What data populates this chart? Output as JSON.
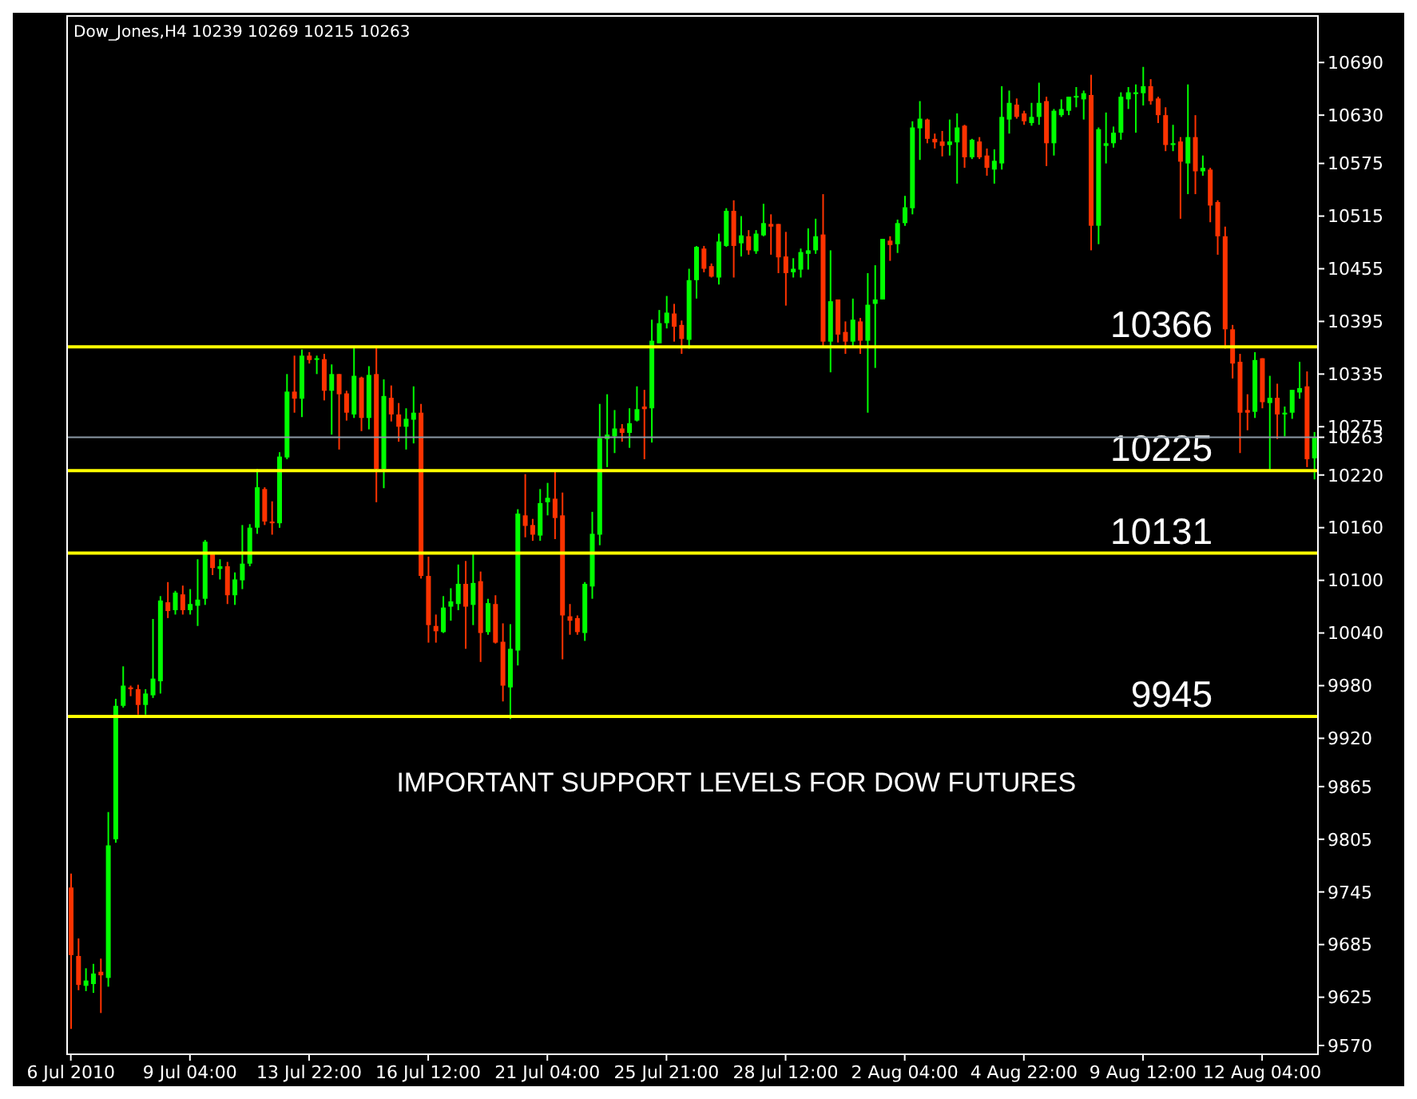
{
  "chart_data": {
    "type": "candlestick",
    "title": "Dow_Jones,H4  10239 10269 10215 10263",
    "categories": [
      "6 Jul 2010",
      null,
      null,
      null,
      null,
      null,
      null,
      null,
      null,
      null,
      null,
      null,
      null,
      null,
      null,
      null,
      "9 Jul 04:00",
      null,
      null,
      null,
      null,
      null,
      null,
      null,
      null,
      null,
      null,
      null,
      null,
      null,
      null,
      null,
      "13 Jul 22:00",
      null,
      null,
      null,
      null,
      null,
      null,
      null,
      null,
      null,
      null,
      null,
      null,
      null,
      null,
      null,
      "16 Jul 12:00",
      null,
      null,
      null,
      null,
      null,
      null,
      null,
      null,
      null,
      null,
      null,
      null,
      null,
      null,
      null,
      "21 Jul 04:00",
      null,
      null,
      null,
      null,
      null,
      null,
      null,
      null,
      null,
      null,
      null,
      null,
      null,
      null,
      null,
      "25 Jul 21:00",
      null,
      null,
      null,
      null,
      null,
      null,
      null,
      null,
      null,
      null,
      null,
      null,
      null,
      null,
      null,
      "28 Jul 12:00",
      null,
      null,
      null,
      null,
      null,
      null,
      null,
      null,
      null,
      null,
      null,
      null,
      null,
      null,
      null,
      "2 Aug 04:00",
      null,
      null,
      null,
      null,
      null,
      null,
      null,
      null,
      null,
      null,
      null,
      null,
      null,
      null,
      null,
      "4 Aug 22:00",
      null,
      null,
      null,
      null,
      null,
      null,
      null,
      null,
      null,
      null,
      null,
      null,
      null,
      null,
      null,
      "9 Aug 12:00",
      null,
      null,
      null,
      null,
      null,
      null,
      null,
      null,
      null,
      null,
      null,
      null,
      null,
      null,
      null,
      "12 Aug 04:00",
      null,
      null,
      null,
      null,
      null,
      null,
      null
    ],
    "ohlc": [
      [
        9750,
        9766,
        9589,
        9673
      ],
      [
        9672,
        9692,
        9633,
        9639
      ],
      [
        9638,
        9658,
        9632,
        9644
      ],
      [
        9640,
        9663,
        9630,
        9652
      ],
      [
        9654,
        9669,
        9607,
        9650
      ],
      [
        9647,
        9836,
        9637,
        9798
      ],
      [
        9805,
        9965,
        9801,
        9957
      ],
      [
        9957,
        10002,
        9955,
        9980
      ],
      [
        9978,
        9980,
        9968,
        9976
      ],
      [
        9976,
        9981,
        9947,
        9958
      ],
      [
        9958,
        9976,
        9947,
        9971
      ],
      [
        9969,
        10056,
        9966,
        9988
      ],
      [
        9985,
        10082,
        9971,
        10077
      ],
      [
        10075,
        10098,
        10057,
        10065
      ],
      [
        10066,
        10088,
        10061,
        10086
      ],
      [
        10084,
        10094,
        10061,
        10066
      ],
      [
        10066,
        10090,
        10061,
        10073
      ],
      [
        10071,
        10124,
        10048,
        10078
      ],
      [
        10079,
        10146,
        10072,
        10144
      ],
      [
        10130,
        10130,
        10106,
        10114
      ],
      [
        10113,
        10124,
        10101,
        10116
      ],
      [
        10116,
        10121,
        10073,
        10083
      ],
      [
        10083,
        10109,
        10072,
        10101
      ],
      [
        10100,
        10163,
        10090,
        10119
      ],
      [
        10119,
        10164,
        10116,
        10160
      ],
      [
        10160,
        10227,
        10153,
        10206
      ],
      [
        10204,
        10206,
        10163,
        10167
      ],
      [
        10167,
        10190,
        10152,
        10165
      ],
      [
        10165,
        10246,
        10160,
        10241
      ],
      [
        10240,
        10335,
        10238,
        10315
      ],
      [
        10315,
        10356,
        10291,
        10307
      ],
      [
        10307,
        10363,
        10286,
        10356
      ],
      [
        10356,
        10360,
        10347,
        10351
      ],
      [
        10352,
        10356,
        10335,
        10353
      ],
      [
        10352,
        10358,
        10305,
        10316
      ],
      [
        10316,
        10346,
        10266,
        10335
      ],
      [
        10335,
        10335,
        10249,
        10312
      ],
      [
        10313,
        10316,
        10282,
        10291
      ],
      [
        10289,
        10367,
        10285,
        10333
      ],
      [
        10331,
        10332,
        10270,
        10285
      ],
      [
        10285,
        10344,
        10272,
        10334
      ],
      [
        10335,
        10365,
        10189,
        10227
      ],
      [
        10227,
        10329,
        10205,
        10310
      ],
      [
        10308,
        10322,
        10281,
        10289
      ],
      [
        10289,
        10302,
        10258,
        10275
      ],
      [
        10275,
        10296,
        10249,
        10284
      ],
      [
        10283,
        10321,
        10256,
        10291
      ],
      [
        10291,
        10301,
        10102,
        10105
      ],
      [
        10105,
        10127,
        10029,
        10049
      ],
      [
        10048,
        10061,
        10029,
        10042
      ],
      [
        10041,
        10082,
        10040,
        10069
      ],
      [
        10070,
        10091,
        10054,
        10076
      ],
      [
        10073,
        10118,
        10066,
        10096
      ],
      [
        10096,
        10122,
        10022,
        10070
      ],
      [
        10072,
        10131,
        10049,
        10097
      ],
      [
        10099,
        10110,
        10007,
        10040
      ],
      [
        10041,
        10079,
        10038,
        10074
      ],
      [
        10073,
        10083,
        10028,
        10029
      ],
      [
        10030,
        10051,
        9962,
        9980
      ],
      [
        9978,
        10050,
        9942,
        10022
      ],
      [
        10020,
        10181,
        10003,
        10176
      ],
      [
        10174,
        10221,
        10149,
        10162
      ],
      [
        10163,
        10170,
        10145,
        10152
      ],
      [
        10151,
        10204,
        10145,
        10188
      ],
      [
        10189,
        10211,
        10174,
        10194
      ],
      [
        10193,
        10225,
        10147,
        10171
      ],
      [
        10174,
        10200,
        10010,
        10060
      ],
      [
        10059,
        10073,
        10038,
        10054
      ],
      [
        10057,
        10060,
        10038,
        10041
      ],
      [
        10040,
        10098,
        10031,
        10096
      ],
      [
        10093,
        10178,
        10079,
        10153
      ],
      [
        10152,
        10301,
        10140,
        10262
      ],
      [
        10261,
        10312,
        10229,
        10266
      ],
      [
        10264,
        10294,
        10245,
        10273
      ],
      [
        10273,
        10278,
        10258,
        10268
      ],
      [
        10268,
        10296,
        10251,
        10279
      ],
      [
        10282,
        10321,
        10281,
        10295
      ],
      [
        10298,
        10317,
        10238,
        10295
      ],
      [
        10296,
        10397,
        10257,
        10373
      ],
      [
        10370,
        10408,
        10370,
        10393
      ],
      [
        10393,
        10424,
        10387,
        10405
      ],
      [
        10404,
        10415,
        10372,
        10389
      ],
      [
        10391,
        10396,
        10358,
        10375
      ],
      [
        10374,
        10455,
        10364,
        10442
      ],
      [
        10442,
        10481,
        10421,
        10480
      ],
      [
        10478,
        10481,
        10451,
        10455
      ],
      [
        10458,
        10461,
        10445,
        10446
      ],
      [
        10445,
        10495,
        10437,
        10486
      ],
      [
        10481,
        10524,
        10480,
        10521
      ],
      [
        10521,
        10533,
        10445,
        10481
      ],
      [
        10484,
        10515,
        10469,
        10493
      ],
      [
        10492,
        10499,
        10471,
        10476
      ],
      [
        10475,
        10499,
        10472,
        10495
      ],
      [
        10493,
        10529,
        10492,
        10507
      ],
      [
        10506,
        10517,
        10471,
        10503
      ],
      [
        10506,
        10506,
        10450,
        10468
      ],
      [
        10469,
        10497,
        10413,
        10450
      ],
      [
        10451,
        10467,
        10445,
        10455
      ],
      [
        10454,
        10478,
        10445,
        10474
      ],
      [
        10472,
        10501,
        10454,
        10476
      ],
      [
        10476,
        10512,
        10472,
        10492
      ],
      [
        10494,
        10540,
        10365,
        10372
      ],
      [
        10372,
        10476,
        10337,
        10418
      ],
      [
        10420,
        10420,
        10371,
        10380
      ],
      [
        10383,
        10395,
        10358,
        10372
      ],
      [
        10372,
        10421,
        10367,
        10397
      ],
      [
        10395,
        10399,
        10358,
        10373
      ],
      [
        10373,
        10450,
        10291,
        10414
      ],
      [
        10415,
        10459,
        10342,
        10420
      ],
      [
        10420,
        10489,
        10420,
        10489
      ],
      [
        10487,
        10492,
        10464,
        10482
      ],
      [
        10483,
        10511,
        10473,
        10507
      ],
      [
        10507,
        10538,
        10504,
        10525
      ],
      [
        10524,
        10623,
        10517,
        10616
      ],
      [
        10615,
        10646,
        10579,
        10626
      ],
      [
        10625,
        10626,
        10598,
        10603
      ],
      [
        10603,
        10609,
        10592,
        10599
      ],
      [
        10600,
        10612,
        10583,
        10595
      ],
      [
        10596,
        10625,
        10584,
        10600
      ],
      [
        10599,
        10632,
        10552,
        10616
      ],
      [
        10618,
        10619,
        10570,
        10582
      ],
      [
        10582,
        10603,
        10580,
        10602
      ],
      [
        10600,
        10605,
        10580,
        10582
      ],
      [
        10584,
        10592,
        10561,
        10570
      ],
      [
        10568,
        10591,
        10552,
        10578
      ],
      [
        10575,
        10663,
        10568,
        10628
      ],
      [
        10625,
        10658,
        10609,
        10644
      ],
      [
        10642,
        10649,
        10626,
        10628
      ],
      [
        10632,
        10635,
        10619,
        10623
      ],
      [
        10621,
        10644,
        10618,
        10628
      ],
      [
        10628,
        10667,
        10619,
        10644
      ],
      [
        10646,
        10651,
        10572,
        10598
      ],
      [
        10598,
        10637,
        10584,
        10635
      ],
      [
        10630,
        10648,
        10628,
        10637
      ],
      [
        10635,
        10651,
        10630,
        10651
      ],
      [
        10650,
        10662,
        10639,
        10652
      ],
      [
        10648,
        10658,
        10625,
        10655
      ],
      [
        10653,
        10676,
        10476,
        10504
      ],
      [
        10504,
        10616,
        10483,
        10614
      ],
      [
        10595,
        10633,
        10575,
        10598
      ],
      [
        10598,
        10617,
        10593,
        10610
      ],
      [
        10610,
        10656,
        10602,
        10651
      ],
      [
        10648,
        10662,
        10637,
        10656
      ],
      [
        10654,
        10665,
        10610,
        10656
      ],
      [
        10655,
        10685,
        10641,
        10663
      ],
      [
        10663,
        10671,
        10642,
        10646
      ],
      [
        10649,
        10651,
        10621,
        10630
      ],
      [
        10630,
        10639,
        10589,
        10596
      ],
      [
        10596,
        10619,
        10589,
        10598
      ],
      [
        10600,
        10605,
        10512,
        10577
      ],
      [
        10575,
        10665,
        10540,
        10605
      ],
      [
        10605,
        10630,
        10540,
        10566
      ],
      [
        10566,
        10584,
        10561,
        10570
      ],
      [
        10568,
        10570,
        10508,
        10527
      ],
      [
        10531,
        10533,
        10471,
        10492
      ],
      [
        10492,
        10503,
        10364,
        10386
      ],
      [
        10386,
        10391,
        10330,
        10347
      ],
      [
        10349,
        10358,
        10245,
        10291
      ],
      [
        10294,
        10312,
        10271,
        10291
      ],
      [
        10292,
        10360,
        10285,
        10351
      ],
      [
        10353,
        10353,
        10296,
        10303
      ],
      [
        10302,
        10333,
        10224,
        10308
      ],
      [
        10308,
        10324,
        10261,
        10289
      ],
      [
        10289,
        10298,
        10264,
        10291
      ],
      [
        10291,
        10317,
        10284,
        10317
      ],
      [
        10314,
        10349,
        10307,
        10319
      ],
      [
        10321,
        10338,
        10229,
        10238
      ],
      [
        10239,
        10269,
        10215,
        10263
      ]
    ],
    "colors": [
      "#ff3300",
      "#ff3300",
      "#00ff00",
      "#00ff00",
      "#ff3300",
      "#00ff00",
      "#00ff00",
      "#00ff00",
      "#ff3300",
      "#ff3300",
      "#00ff00",
      "#00ff00",
      "#00ff00",
      "#ff3300",
      "#00ff00",
      "#ff3300",
      "#00ff00",
      "#00ff00",
      "#00ff00",
      "#ff3300",
      "#00ff00",
      "#ff3300",
      "#00ff00",
      "#00ff00",
      "#00ff00",
      "#00ff00",
      "#ff3300",
      "#ff3300",
      "#00ff00",
      "#00ff00",
      "#ff3300",
      "#00ff00",
      "#ff3300",
      "#00ff00",
      "#ff3300",
      "#00ff00",
      "#ff3300",
      "#ff3300",
      "#00ff00",
      "#ff3300",
      "#00ff00",
      "#ff3300",
      "#00ff00",
      "#ff3300",
      "#ff3300",
      "#00ff00",
      "#00ff00",
      "#ff3300",
      "#ff3300",
      "#ff3300",
      "#00ff00",
      "#00ff00",
      "#00ff00",
      "#ff3300",
      "#00ff00",
      "#ff3300",
      "#00ff00",
      "#ff3300",
      "#ff3300",
      "#00ff00",
      "#00ff00",
      "#ff3300",
      "#ff3300",
      "#00ff00",
      "#00ff00",
      "#ff3300",
      "#ff3300",
      "#ff3300",
      "#ff3300",
      "#00ff00",
      "#00ff00",
      "#00ff00",
      "#00ff00",
      "#00ff00",
      "#ff3300",
      "#00ff00",
      "#00ff00",
      "#ff3300",
      "#00ff00",
      "#00ff00",
      "#00ff00",
      "#ff3300",
      "#ff3300",
      "#00ff00",
      "#00ff00",
      "#ff3300",
      "#ff3300",
      "#00ff00",
      "#00ff00",
      "#ff3300",
      "#00ff00",
      "#ff3300",
      "#00ff00",
      "#00ff00",
      "#ff3300",
      "#ff3300",
      "#ff3300",
      "#00ff00",
      "#00ff00",
      "#00ff00",
      "#00ff00",
      "#ff3300",
      "#00ff00",
      "#ff3300",
      "#ff3300",
      "#00ff00",
      "#ff3300",
      "#00ff00",
      "#00ff00",
      "#00ff00",
      "#ff3300",
      "#00ff00",
      "#00ff00",
      "#00ff00",
      "#00ff00",
      "#ff3300",
      "#ff3300",
      "#ff3300",
      "#00ff00",
      "#00ff00",
      "#ff3300",
      "#00ff00",
      "#ff3300",
      "#ff3300",
      "#00ff00",
      "#00ff00",
      "#00ff00",
      "#ff3300",
      "#ff3300",
      "#00ff00",
      "#00ff00",
      "#ff3300",
      "#00ff00",
      "#00ff00",
      "#00ff00",
      "#00ff00",
      "#00ff00",
      "#ff3300",
      "#00ff00",
      "#00ff00",
      "#00ff00",
      "#00ff00",
      "#00ff00",
      "#00ff00",
      "#00ff00",
      "#ff3300",
      "#ff3300",
      "#ff3300",
      "#00ff00",
      "#ff3300",
      "#00ff00",
      "#ff3300",
      "#00ff00",
      "#ff3300",
      "#ff3300",
      "#ff3300",
      "#ff3300",
      "#ff3300",
      "#ff3300",
      "#00ff00",
      "#ff3300",
      "#00ff00",
      "#ff3300",
      "#00ff00",
      "#00ff00",
      "#00ff00",
      "#ff3300",
      "#00ff00"
    ],
    "ylim": [
      9560,
      10743
    ],
    "yticks": [
      9570,
      9625,
      9685,
      9745,
      9805,
      9865,
      9920,
      9980,
      10040,
      10100,
      10160,
      10220,
      {
        "value": 10263,
        "label": "10263"
      },
      10275,
      10335,
      10395,
      10455,
      10515,
      10575,
      10630,
      10690
    ],
    "ref_lines": [
      {
        "axis": "y",
        "value": 10366,
        "label": "10366",
        "color": "#ffff00"
      },
      {
        "axis": "y",
        "value": 10225,
        "label": "10225",
        "color": "#ffff00"
      },
      {
        "axis": "y",
        "value": 10131,
        "label": "10131",
        "color": "#ffff00"
      },
      {
        "axis": "y",
        "value": 9945,
        "label": "9945",
        "color": "#ffff00"
      },
      {
        "axis": "y",
        "value": 10263,
        "color": "#8c9aa6"
      }
    ],
    "annotations": [
      "IMPORTANT SUPPORT LEVELS FOR DOW FUTURES"
    ],
    "grid": false,
    "legend": false
  }
}
